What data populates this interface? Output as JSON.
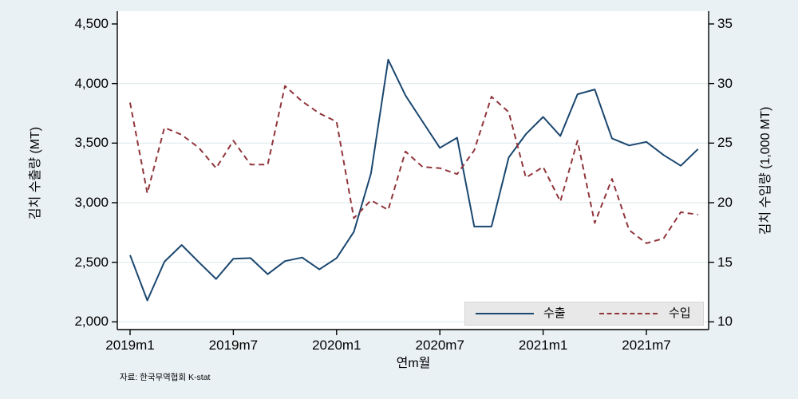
{
  "chart_data": {
    "type": "line",
    "title": "",
    "x_labels": [
      "2019m1",
      "2019m2",
      "2019m3",
      "2019m4",
      "2019m5",
      "2019m6",
      "2019m7",
      "2019m8",
      "2019m9",
      "2019m10",
      "2019m11",
      "2019m12",
      "2020m1",
      "2020m2",
      "2020m3",
      "2020m4",
      "2020m5",
      "2020m6",
      "2020m7",
      "2020m8",
      "2020m9",
      "2020m10",
      "2020m11",
      "2020m12",
      "2021m1",
      "2021m2",
      "2021m3",
      "2021m4",
      "2021m5",
      "2021m6",
      "2021m7",
      "2021m8",
      "2021m9",
      "2021m10"
    ],
    "x_axis": {
      "title": "연m월",
      "ticks": [
        {
          "label": "2019m1",
          "index": 0
        },
        {
          "label": "2019m7",
          "index": 6
        },
        {
          "label": "2020m1",
          "index": 12
        },
        {
          "label": "2020m7",
          "index": 18
        },
        {
          "label": "2021m1",
          "index": 24
        },
        {
          "label": "2021m7",
          "index": 30
        }
      ]
    },
    "left_axis": {
      "title": "김치 수출량 (MT)",
      "range": [
        2000,
        4500
      ],
      "ticks": [
        {
          "label": "4,500",
          "value": 4500
        },
        {
          "label": "4,000",
          "value": 4000
        },
        {
          "label": "3,500",
          "value": 3500
        },
        {
          "label": "3,000",
          "value": 3000
        },
        {
          "label": "2,500",
          "value": 2500
        },
        {
          "label": "2,000",
          "value": 2000
        }
      ],
      "grid_values": [
        4000,
        3500,
        3000,
        2500,
        2000
      ]
    },
    "right_axis": {
      "title": "김치 수입량 (1,000 MT)",
      "range": [
        10,
        35
      ],
      "ticks": [
        {
          "label": "35",
          "value": 35
        },
        {
          "label": "30",
          "value": 30
        },
        {
          "label": "25",
          "value": 25
        },
        {
          "label": "20",
          "value": 20
        },
        {
          "label": "15",
          "value": 15
        },
        {
          "label": "10",
          "value": 10
        }
      ]
    },
    "series": [
      {
        "name": "수출",
        "axis": "left",
        "line_style": "solid",
        "color": "#1a476f",
        "values": [
          2560,
          2180,
          2505,
          2645,
          2500,
          2360,
          2530,
          2535,
          2400,
          2510,
          2540,
          2440,
          2535,
          2755,
          3245,
          4200,
          3900,
          3680,
          3460,
          3545,
          2800,
          2800,
          3380,
          3575,
          3720,
          3560,
          3910,
          3950,
          3540,
          3480,
          3510,
          3400,
          3310,
          3450
        ]
      },
      {
        "name": "수입",
        "axis": "right",
        "line_style": "dashed",
        "color": "#90353b",
        "values": [
          28.4,
          20.8,
          26.3,
          25.7,
          24.6,
          22.9,
          25.2,
          23.2,
          23.2,
          29.8,
          28.5,
          27.5,
          26.8,
          18.7,
          20.2,
          19.4,
          24.3,
          23.0,
          22.9,
          22.4,
          24.4,
          28.9,
          27.6,
          22.1,
          23.0,
          20.1,
          25.2,
          18.3,
          22.0,
          17.7,
          16.6,
          17.0,
          19.2,
          19.0
        ]
      }
    ],
    "legend": {
      "labels": [
        "수출",
        "수입"
      ],
      "position": "bottom-right-inside"
    },
    "note": "자료: 한국무역협회 K-stat",
    "grid": true,
    "background_color": "#eaf1f4",
    "plot_background": "#ffffff",
    "grid_color": "#dfeaee",
    "axis_color": "#000000"
  }
}
